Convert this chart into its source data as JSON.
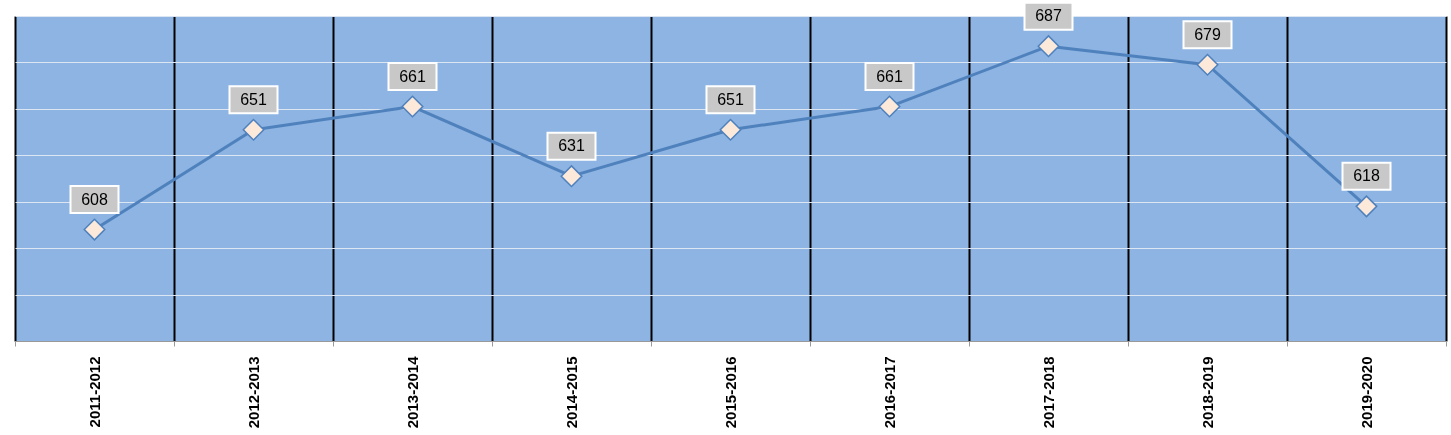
{
  "chart_data": {
    "type": "line",
    "categories": [
      "2011-2012",
      "2012-2013",
      "2013-2014",
      "2014-2015",
      "2015-2016",
      "2016-2017",
      "2017-2018",
      "2018-2019",
      "2019-2020"
    ],
    "series": [
      {
        "color": "#4f81bd",
        "values": [
          608,
          651,
          661,
          631,
          651,
          661,
          687,
          679,
          618
        ]
      }
    ],
    "ylim": [
      560,
      700
    ],
    "yticks": [
      {
        "value": 560,
        "label": null
      },
      {
        "value": 580,
        "label": null
      },
      {
        "value": 600,
        "label": null
      },
      {
        "value": 620,
        "label": null
      },
      {
        "value": 640,
        "label": null
      },
      {
        "value": 660,
        "label": null
      },
      {
        "value": 680,
        "label": null
      },
      {
        "value": 700,
        "label": null
      }
    ],
    "tick_labels": "x",
    "grid": true,
    "marker": "diamond",
    "data_labels": true
  }
}
